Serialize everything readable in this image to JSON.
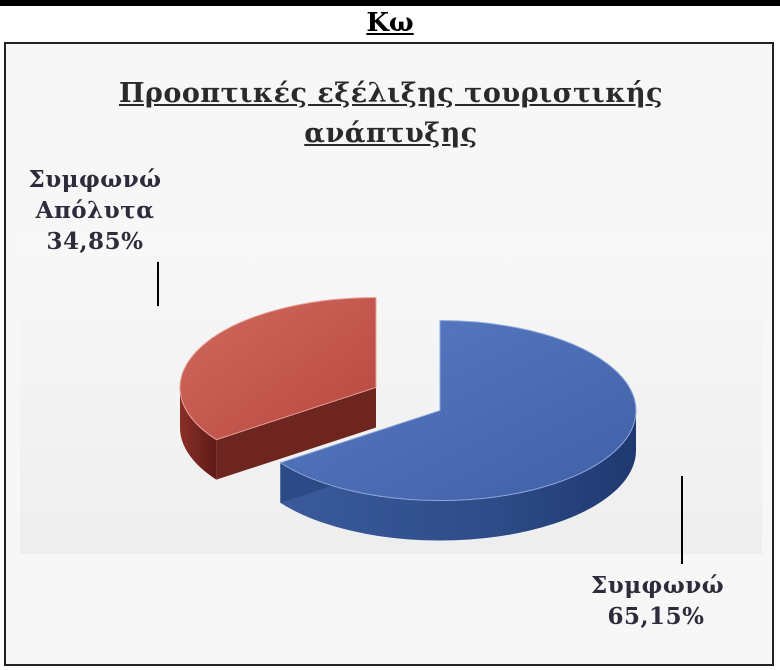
{
  "page": {
    "heading": "Κω"
  },
  "chart_data": {
    "type": "pie",
    "title_lines": [
      "Προοπτικές εξέλιξης τουριστικής",
      "ανάπτυξης"
    ],
    "slices": [
      {
        "label_lines": [
          "Συμφωνώ",
          "Απόλυτα"
        ],
        "value": 34.85,
        "value_label": "34,85%",
        "color": "#c0504d",
        "side_color": "#7a2622"
      },
      {
        "label_lines": [
          "Συμφωνώ"
        ],
        "value": 65.15,
        "value_label": "65,15%",
        "color": "#4f6fb4",
        "side_color": "#2f4f8c"
      }
    ],
    "style": "3d-exploded",
    "legend": "none"
  }
}
